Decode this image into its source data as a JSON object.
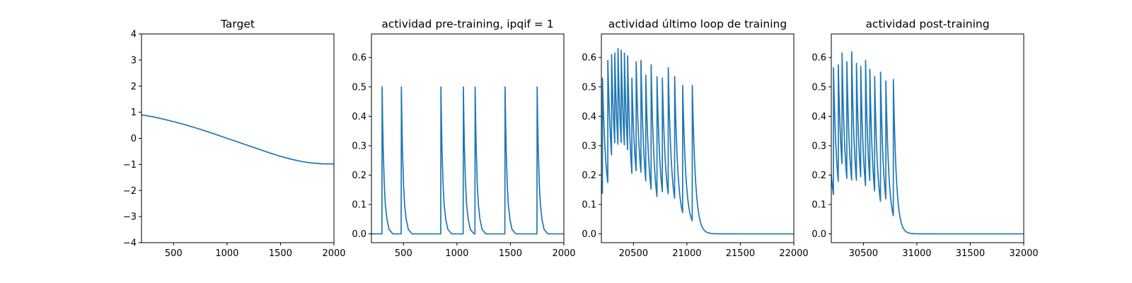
{
  "figure": {
    "background": "#ffffff"
  },
  "chart_data": [
    {
      "type": "line",
      "title": "Target",
      "xlabel": "",
      "ylabel": "",
      "xlim": [
        200,
        2000
      ],
      "ylim": [
        -4,
        4
      ],
      "xticks": [
        500,
        1000,
        1500,
        2000
      ],
      "xtick_labels": [
        "500",
        "1000",
        "1500",
        "2000"
      ],
      "yticks": [
        -4,
        -3,
        -2,
        -1,
        0,
        1,
        2,
        3,
        4
      ],
      "ytick_labels": [
        "−4",
        "−3",
        "−2",
        "−1",
        "0",
        "1",
        "2",
        "3",
        "4"
      ],
      "grid": false,
      "series": [
        {
          "color": "#1f77b4",
          "x": [
            200,
            300,
            400,
            500,
            600,
            700,
            800,
            900,
            1000,
            1100,
            1200,
            1300,
            1400,
            1500,
            1600,
            1700,
            1800,
            1900,
            2000
          ],
          "y": [
            0.9,
            0.83,
            0.74,
            0.64,
            0.53,
            0.41,
            0.28,
            0.14,
            0.0,
            -0.14,
            -0.28,
            -0.42,
            -0.56,
            -0.69,
            -0.8,
            -0.89,
            -0.95,
            -0.98,
            -0.98
          ]
        }
      ]
    },
    {
      "type": "line",
      "title": "actividad pre-training, ipqif = 1",
      "xlabel": "",
      "ylabel": "",
      "xlim": [
        200,
        2000
      ],
      "ylim": [
        -0.03,
        0.68
      ],
      "xticks": [
        500,
        1000,
        1500,
        2000
      ],
      "xtick_labels": [
        "500",
        "1000",
        "1500",
        "2000"
      ],
      "yticks": [
        0.0,
        0.1,
        0.2,
        0.3,
        0.4,
        0.5,
        0.6
      ],
      "ytick_labels": [
        "0.0",
        "0.1",
        "0.2",
        "0.3",
        "0.4",
        "0.5",
        "0.6"
      ],
      "grid": false,
      "series": [
        {
          "color": "#1f77b4",
          "x": [
            200,
            298,
            300,
            305,
            310,
            320,
            330,
            345,
            365,
            400,
            478,
            480,
            485,
            490,
            500,
            510,
            525,
            545,
            580,
            848,
            850,
            855,
            860,
            870,
            880,
            895,
            915,
            950,
            1058,
            1060,
            1065,
            1070,
            1080,
            1090,
            1105,
            1125,
            1160,
            1168,
            1170,
            1175,
            1180,
            1190,
            1200,
            1215,
            1235,
            1270,
            1448,
            1450,
            1455,
            1460,
            1470,
            1480,
            1495,
            1515,
            1550,
            1748,
            1750,
            1755,
            1760,
            1770,
            1780,
            1795,
            1815,
            1850,
            2000
          ],
          "y": [
            0.0,
            0.0,
            0.5,
            0.38,
            0.29,
            0.17,
            0.1,
            0.05,
            0.015,
            0.0,
            0.0,
            0.5,
            0.38,
            0.29,
            0.17,
            0.1,
            0.05,
            0.015,
            0.0,
            0.0,
            0.5,
            0.38,
            0.29,
            0.17,
            0.1,
            0.05,
            0.015,
            0.0,
            0.0,
            0.5,
            0.38,
            0.29,
            0.17,
            0.1,
            0.05,
            0.015,
            0.0,
            0.0,
            0.5,
            0.38,
            0.29,
            0.17,
            0.1,
            0.05,
            0.015,
            0.0,
            0.0,
            0.5,
            0.38,
            0.29,
            0.17,
            0.1,
            0.05,
            0.015,
            0.0,
            0.0,
            0.5,
            0.38,
            0.29,
            0.17,
            0.1,
            0.05,
            0.015,
            0.0,
            0.0
          ]
        }
      ]
    },
    {
      "type": "line",
      "title": "actividad último loop de training",
      "xlabel": "",
      "ylabel": "",
      "xlim": [
        20200,
        22000
      ],
      "ylim": [
        -0.03,
        0.68
      ],
      "xticks": [
        20500,
        21000,
        21500,
        22000
      ],
      "xtick_labels": [
        "20500",
        "21000",
        "21500",
        "22000"
      ],
      "yticks": [
        0.0,
        0.1,
        0.2,
        0.3,
        0.4,
        0.5,
        0.6
      ],
      "ytick_labels": [
        "0.0",
        "0.1",
        "0.2",
        "0.3",
        "0.4",
        "0.5",
        "0.6"
      ],
      "grid": false,
      "series": [
        {
          "color": "#1f77b4",
          "spikes": {
            "times": [
              20210,
              20260,
              20295,
              20325,
              20355,
              20385,
              20415,
              20445,
              20485,
              20525,
              20570,
              20615,
              20665,
              20720,
              20770,
              20825,
              20885,
              20960,
              21050
            ],
            "peaks": [
              0.53,
              0.59,
              0.61,
              0.615,
              0.63,
              0.625,
              0.615,
              0.605,
              0.53,
              0.585,
              0.59,
              0.54,
              0.575,
              0.535,
              0.53,
              0.565,
              0.535,
              0.505,
              0.505
            ],
            "floors": [
              0.03,
              0.09,
              0.12,
              0.13,
              0.12,
              0.12,
              0.11,
              0.09,
              0.06,
              0.1,
              0.1,
              0.06,
              0.06,
              0.04,
              0.05,
              0.06,
              0.05,
              0.03,
              0.02
            ],
            "initial": 0.18,
            "decay": 30,
            "baseline": 0.0,
            "xmax": 22000
          }
        }
      ]
    },
    {
      "type": "line",
      "title": "actividad post-training",
      "xlabel": "",
      "ylabel": "",
      "xlim": [
        30200,
        32000
      ],
      "ylim": [
        -0.03,
        0.68
      ],
      "xticks": [
        30500,
        31000,
        31500,
        32000
      ],
      "xtick_labels": [
        "30500",
        "31000",
        "31500",
        "32000"
      ],
      "yticks": [
        0.0,
        0.1,
        0.2,
        0.3,
        0.4,
        0.5,
        0.6
      ],
      "ytick_labels": [
        "0.0",
        "0.1",
        "0.2",
        "0.3",
        "0.4",
        "0.5",
        "0.6"
      ],
      "grid": false,
      "series": [
        {
          "color": "#1f77b4",
          "spikes": {
            "times": [
              30220,
              30265,
              30300,
              30345,
              30390,
              30435,
              30475,
              30520,
              30560,
              30605,
              30660,
              30710,
              30780
            ],
            "peaks": [
              0.565,
              0.575,
              0.615,
              0.585,
              0.62,
              0.58,
              0.57,
              0.59,
              0.56,
              0.535,
              0.55,
              0.52,
              0.525
            ],
            "floors": [
              0.07,
              0.08,
              0.1,
              0.08,
              0.08,
              0.07,
              0.07,
              0.06,
              0.05,
              0.04,
              0.04,
              0.03,
              0.02
            ],
            "initial": 0.2,
            "decay": 28,
            "baseline": 0.0,
            "xmax": 32000
          }
        }
      ]
    }
  ]
}
